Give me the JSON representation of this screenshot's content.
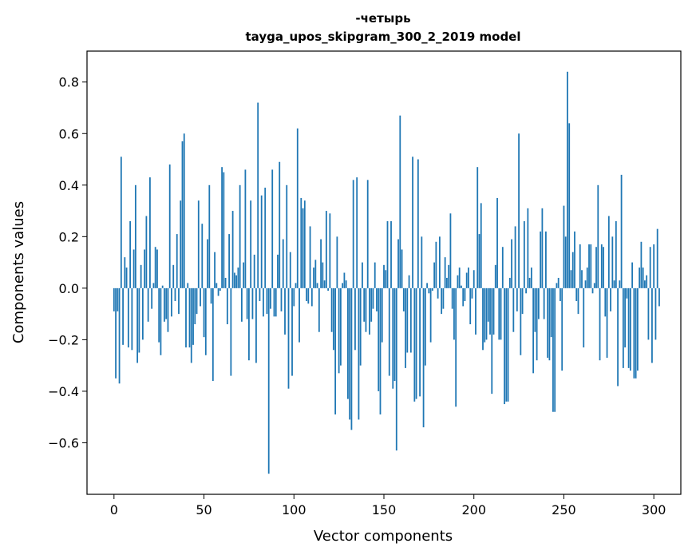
{
  "chart_data": {
    "type": "bar",
    "title": "-четырь",
    "subtitle": "tayga_upos_skipgram_300_2_2019 model",
    "xlabel": "Vector components",
    "ylabel": "Components values",
    "xlim": [
      -15,
      315
    ],
    "ylim": [
      -0.8,
      0.92
    ],
    "xticks": [
      0,
      50,
      100,
      150,
      200,
      250,
      300
    ],
    "yticks": [
      -0.6,
      -0.4,
      -0.2,
      0.0,
      0.2,
      0.4,
      0.6,
      0.8
    ],
    "ytick_labels": [
      "−0.6",
      "−0.4",
      "−0.2",
      "0.0",
      "0.2",
      "0.4",
      "0.6",
      "0.8"
    ],
    "bar_color": "#1f77b4",
    "grid": false,
    "values": [
      -0.09,
      -0.35,
      -0.09,
      -0.37,
      0.51,
      -0.22,
      0.12,
      0.08,
      -0.23,
      0.26,
      -0.24,
      0.15,
      0.4,
      -0.29,
      -0.25,
      0.09,
      -0.2,
      0.15,
      0.28,
      -0.13,
      0.43,
      -0.08,
      0.02,
      0.16,
      0.15,
      -0.21,
      -0.26,
      0.01,
      -0.13,
      -0.12,
      -0.17,
      0.48,
      -0.11,
      0.09,
      -0.05,
      0.21,
      -0.1,
      0.34,
      0.57,
      0.6,
      -0.23,
      0.02,
      -0.23,
      -0.29,
      -0.22,
      -0.14,
      -0.1,
      0.34,
      -0.07,
      0.25,
      -0.19,
      -0.26,
      0.19,
      0.4,
      -0.06,
      -0.36,
      0.14,
      0.02,
      -0.03,
      -0.01,
      0.47,
      0.45,
      0.04,
      -0.14,
      0.21,
      -0.34,
      0.3,
      0.06,
      0.05,
      0.08,
      0.4,
      -0.13,
      0.1,
      0.46,
      -0.12,
      -0.28,
      0.34,
      -0.12,
      0.13,
      -0.29,
      0.72,
      -0.05,
      0.36,
      -0.11,
      0.39,
      -0.1,
      -0.72,
      -0.08,
      0.46,
      -0.11,
      -0.11,
      0.13,
      0.49,
      -0.09,
      0.19,
      -0.18,
      0.4,
      -0.39,
      0.14,
      -0.34,
      -0.07,
      0.02,
      0.62,
      -0.21,
      0.35,
      0.31,
      0.34,
      -0.05,
      -0.06,
      0.24,
      -0.07,
      0.08,
      0.11,
      0.02,
      -0.17,
      0.19,
      0.1,
      0.03,
      0.3,
      -0.01,
      0.29,
      -0.17,
      -0.24,
      -0.49,
      0.2,
      -0.33,
      -0.3,
      0.02,
      0.06,
      0.03,
      -0.43,
      -0.51,
      -0.55,
      0.42,
      -0.24,
      0.43,
      -0.51,
      -0.3,
      0.1,
      -0.13,
      -0.17,
      0.42,
      -0.18,
      -0.13,
      -0.08,
      0.1,
      -0.09,
      -0.4,
      -0.49,
      -0.21,
      0.09,
      0.07,
      0.26,
      -0.34,
      0.26,
      -0.39,
      -0.36,
      -0.63,
      0.19,
      0.67,
      0.15,
      -0.09,
      -0.31,
      -0.25,
      0.05,
      -0.25,
      0.51,
      -0.44,
      -0.43,
      0.5,
      -0.42,
      0.2,
      -0.54,
      -0.3,
      0.02,
      -0.02,
      -0.21,
      -0.01,
      0.1,
      0.18,
      -0.04,
      0.2,
      -0.1,
      -0.08,
      0.12,
      0.04,
      0.09,
      0.29,
      -0.08,
      -0.2,
      -0.46,
      0.05,
      0.08,
      0.01,
      -0.07,
      -0.05,
      0.06,
      0.08,
      -0.14,
      -0.04,
      0.07,
      -0.18,
      0.47,
      0.21,
      0.33,
      -0.24,
      -0.21,
      -0.2,
      -0.13,
      -0.18,
      -0.41,
      -0.18,
      0.09,
      0.35,
      -0.2,
      -0.2,
      0.16,
      -0.45,
      -0.44,
      -0.44,
      0.04,
      0.19,
      -0.17,
      0.24,
      -0.09,
      0.6,
      -0.26,
      -0.1,
      0.26,
      -0.02,
      0.31,
      0.04,
      0.08,
      -0.33,
      -0.17,
      -0.28,
      -0.12,
      0.22,
      0.31,
      -0.12,
      0.22,
      -0.27,
      -0.28,
      -0.19,
      -0.48,
      -0.48,
      0.02,
      0.04,
      -0.05,
      -0.32,
      0.32,
      0.2,
      0.84,
      0.64,
      0.07,
      0.14,
      0.22,
      -0.05,
      -0.1,
      0.17,
      0.07,
      -0.23,
      0.03,
      0.08,
      0.17,
      0.17,
      -0.02,
      0.02,
      0.16,
      0.4,
      -0.28,
      0.17,
      0.16,
      -0.11,
      -0.27,
      0.28,
      -0.09,
      0.2,
      0.03,
      0.26,
      -0.38,
      0.03,
      0.44,
      -0.31,
      -0.23,
      -0.04,
      -0.31,
      -0.32,
      0.1,
      -0.35,
      -0.35,
      -0.32,
      0.08,
      0.18,
      0.08,
      0.03,
      0.05,
      -0.2,
      0.16,
      -0.29,
      0.17,
      -0.2,
      0.23,
      -0.07
    ]
  }
}
